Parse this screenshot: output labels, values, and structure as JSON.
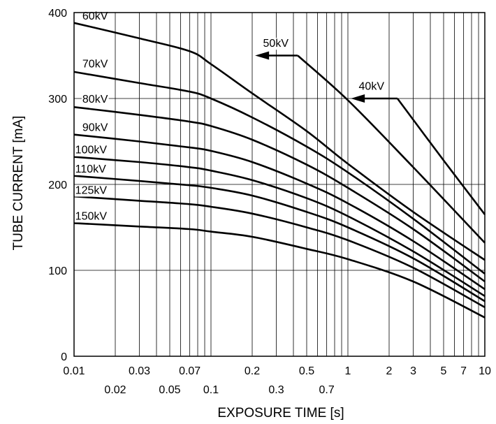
{
  "chart_data": {
    "type": "line",
    "xlabel": "EXPOSURE TIME  [s]",
    "ylabel": "TUBE CURRENT  [mA]",
    "x_scale": "log",
    "xlim": [
      0.01,
      10
    ],
    "ylim": [
      0,
      400
    ],
    "grid": true,
    "x_major_ticks": [
      {
        "value": 0.01,
        "label": "0.01",
        "row": 0
      },
      {
        "value": 0.02,
        "label": "0.02",
        "row": 1
      },
      {
        "value": 0.03,
        "label": "0.03",
        "row": 0
      },
      {
        "value": 0.05,
        "label": "0.05",
        "row": 1
      },
      {
        "value": 0.07,
        "label": "0.07",
        "row": 0
      },
      {
        "value": 0.1,
        "label": "0.1",
        "row": 1
      },
      {
        "value": 0.2,
        "label": "0.2",
        "row": 0
      },
      {
        "value": 0.3,
        "label": "0.3",
        "row": 1
      },
      {
        "value": 0.5,
        "label": "0.5",
        "row": 0
      },
      {
        "value": 0.7,
        "label": "0.7",
        "row": 1
      },
      {
        "value": 1,
        "label": "1",
        "row": 0
      },
      {
        "value": 2,
        "label": "2",
        "row": 0
      },
      {
        "value": 3,
        "label": "3",
        "row": 0
      },
      {
        "value": 5,
        "label": "5",
        "row": 0
      },
      {
        "value": 7,
        "label": "7",
        "row": 0
      },
      {
        "value": 10,
        "label": "10",
        "row": 0
      }
    ],
    "y_ticks": [
      {
        "value": 0,
        "label": "0"
      },
      {
        "value": 100,
        "label": "100"
      },
      {
        "value": 200,
        "label": "200"
      },
      {
        "value": 300,
        "label": "300"
      },
      {
        "value": 400,
        "label": "400"
      }
    ],
    "series": [
      {
        "name": "60kV",
        "points": [
          [
            0.01,
            388
          ],
          [
            0.03,
            370
          ],
          [
            0.07,
            355
          ],
          [
            0.1,
            340
          ],
          [
            0.2,
            306
          ],
          [
            0.5,
            262
          ],
          [
            1,
            224
          ],
          [
            3,
            168
          ],
          [
            10,
            112
          ]
        ]
      },
      {
        "name": "50kV",
        "points": [
          [
            0.43,
            350
          ],
          [
            1,
            298
          ],
          [
            3,
            220
          ],
          [
            10,
            132
          ]
        ]
      },
      {
        "name": "40kV",
        "points": [
          [
            2.3,
            300
          ],
          [
            5,
            228
          ],
          [
            10,
            165
          ]
        ]
      },
      {
        "name": "70kV",
        "points": [
          [
            0.01,
            331
          ],
          [
            0.03,
            318
          ],
          [
            0.07,
            308
          ],
          [
            0.1,
            300
          ],
          [
            0.2,
            278
          ],
          [
            0.5,
            244
          ],
          [
            1,
            214
          ],
          [
            3,
            160
          ],
          [
            10,
            96
          ]
        ]
      },
      {
        "name": "80kV",
        "points": [
          [
            0.01,
            290
          ],
          [
            0.03,
            281
          ],
          [
            0.07,
            273
          ],
          [
            0.1,
            268
          ],
          [
            0.2,
            252
          ],
          [
            0.5,
            223
          ],
          [
            1,
            196
          ],
          [
            3,
            148
          ],
          [
            10,
            87
          ]
        ]
      },
      {
        "name": "90kV",
        "points": [
          [
            0.01,
            258
          ],
          [
            0.03,
            250
          ],
          [
            0.07,
            243
          ],
          [
            0.1,
            239
          ],
          [
            0.2,
            226
          ],
          [
            0.5,
            201
          ],
          [
            1,
            178
          ],
          [
            3,
            134
          ],
          [
            10,
            78
          ]
        ]
      },
      {
        "name": "100kV",
        "points": [
          [
            0.01,
            232
          ],
          [
            0.03,
            226
          ],
          [
            0.07,
            220
          ],
          [
            0.1,
            216
          ],
          [
            0.2,
            205
          ],
          [
            0.5,
            184
          ],
          [
            1,
            163
          ],
          [
            3,
            122
          ],
          [
            10,
            70
          ]
        ]
      },
      {
        "name": "110kV",
        "points": [
          [
            0.01,
            210
          ],
          [
            0.03,
            204
          ],
          [
            0.07,
            199
          ],
          [
            0.1,
            196
          ],
          [
            0.2,
            187
          ],
          [
            0.5,
            168
          ],
          [
            1,
            150
          ],
          [
            3,
            114
          ],
          [
            10,
            64
          ]
        ]
      },
      {
        "name": "125kV",
        "points": [
          [
            0.01,
            186
          ],
          [
            0.03,
            181
          ],
          [
            0.07,
            177
          ],
          [
            0.1,
            174
          ],
          [
            0.2,
            166
          ],
          [
            0.5,
            150
          ],
          [
            1,
            135
          ],
          [
            3,
            103
          ],
          [
            10,
            57
          ]
        ]
      },
      {
        "name": "150kV",
        "points": [
          [
            0.01,
            155
          ],
          [
            0.03,
            151
          ],
          [
            0.07,
            148
          ],
          [
            0.1,
            145
          ],
          [
            0.2,
            139
          ],
          [
            0.5,
            125
          ],
          [
            1,
            113
          ],
          [
            3,
            87
          ],
          [
            10,
            45
          ]
        ]
      }
    ],
    "arrows": [
      {
        "series": "50kV",
        "from": [
          0.43,
          350
        ],
        "to": [
          0.21,
          350
        ]
      },
      {
        "series": "40kV",
        "from": [
          2.3,
          300
        ],
        "to": [
          1.05,
          300
        ]
      }
    ],
    "curve_labels": [
      {
        "text": "60kV",
        "x": 0.0115,
        "y": 392
      },
      {
        "text": "70kV",
        "x": 0.0115,
        "y": 336
      },
      {
        "text": "80kV",
        "x": 0.0115,
        "y": 295
      },
      {
        "text": "90kV",
        "x": 0.0115,
        "y": 262
      },
      {
        "text": "100kV",
        "x": 0.0102,
        "y": 236
      },
      {
        "text": "110kV",
        "x": 0.0102,
        "y": 214
      },
      {
        "text": "125kV",
        "x": 0.0102,
        "y": 189
      },
      {
        "text": "150kV",
        "x": 0.0102,
        "y": 159
      },
      {
        "text": "50kV",
        "x": 0.24,
        "y": 360
      },
      {
        "text": "40kV",
        "x": 1.2,
        "y": 310
      }
    ]
  }
}
